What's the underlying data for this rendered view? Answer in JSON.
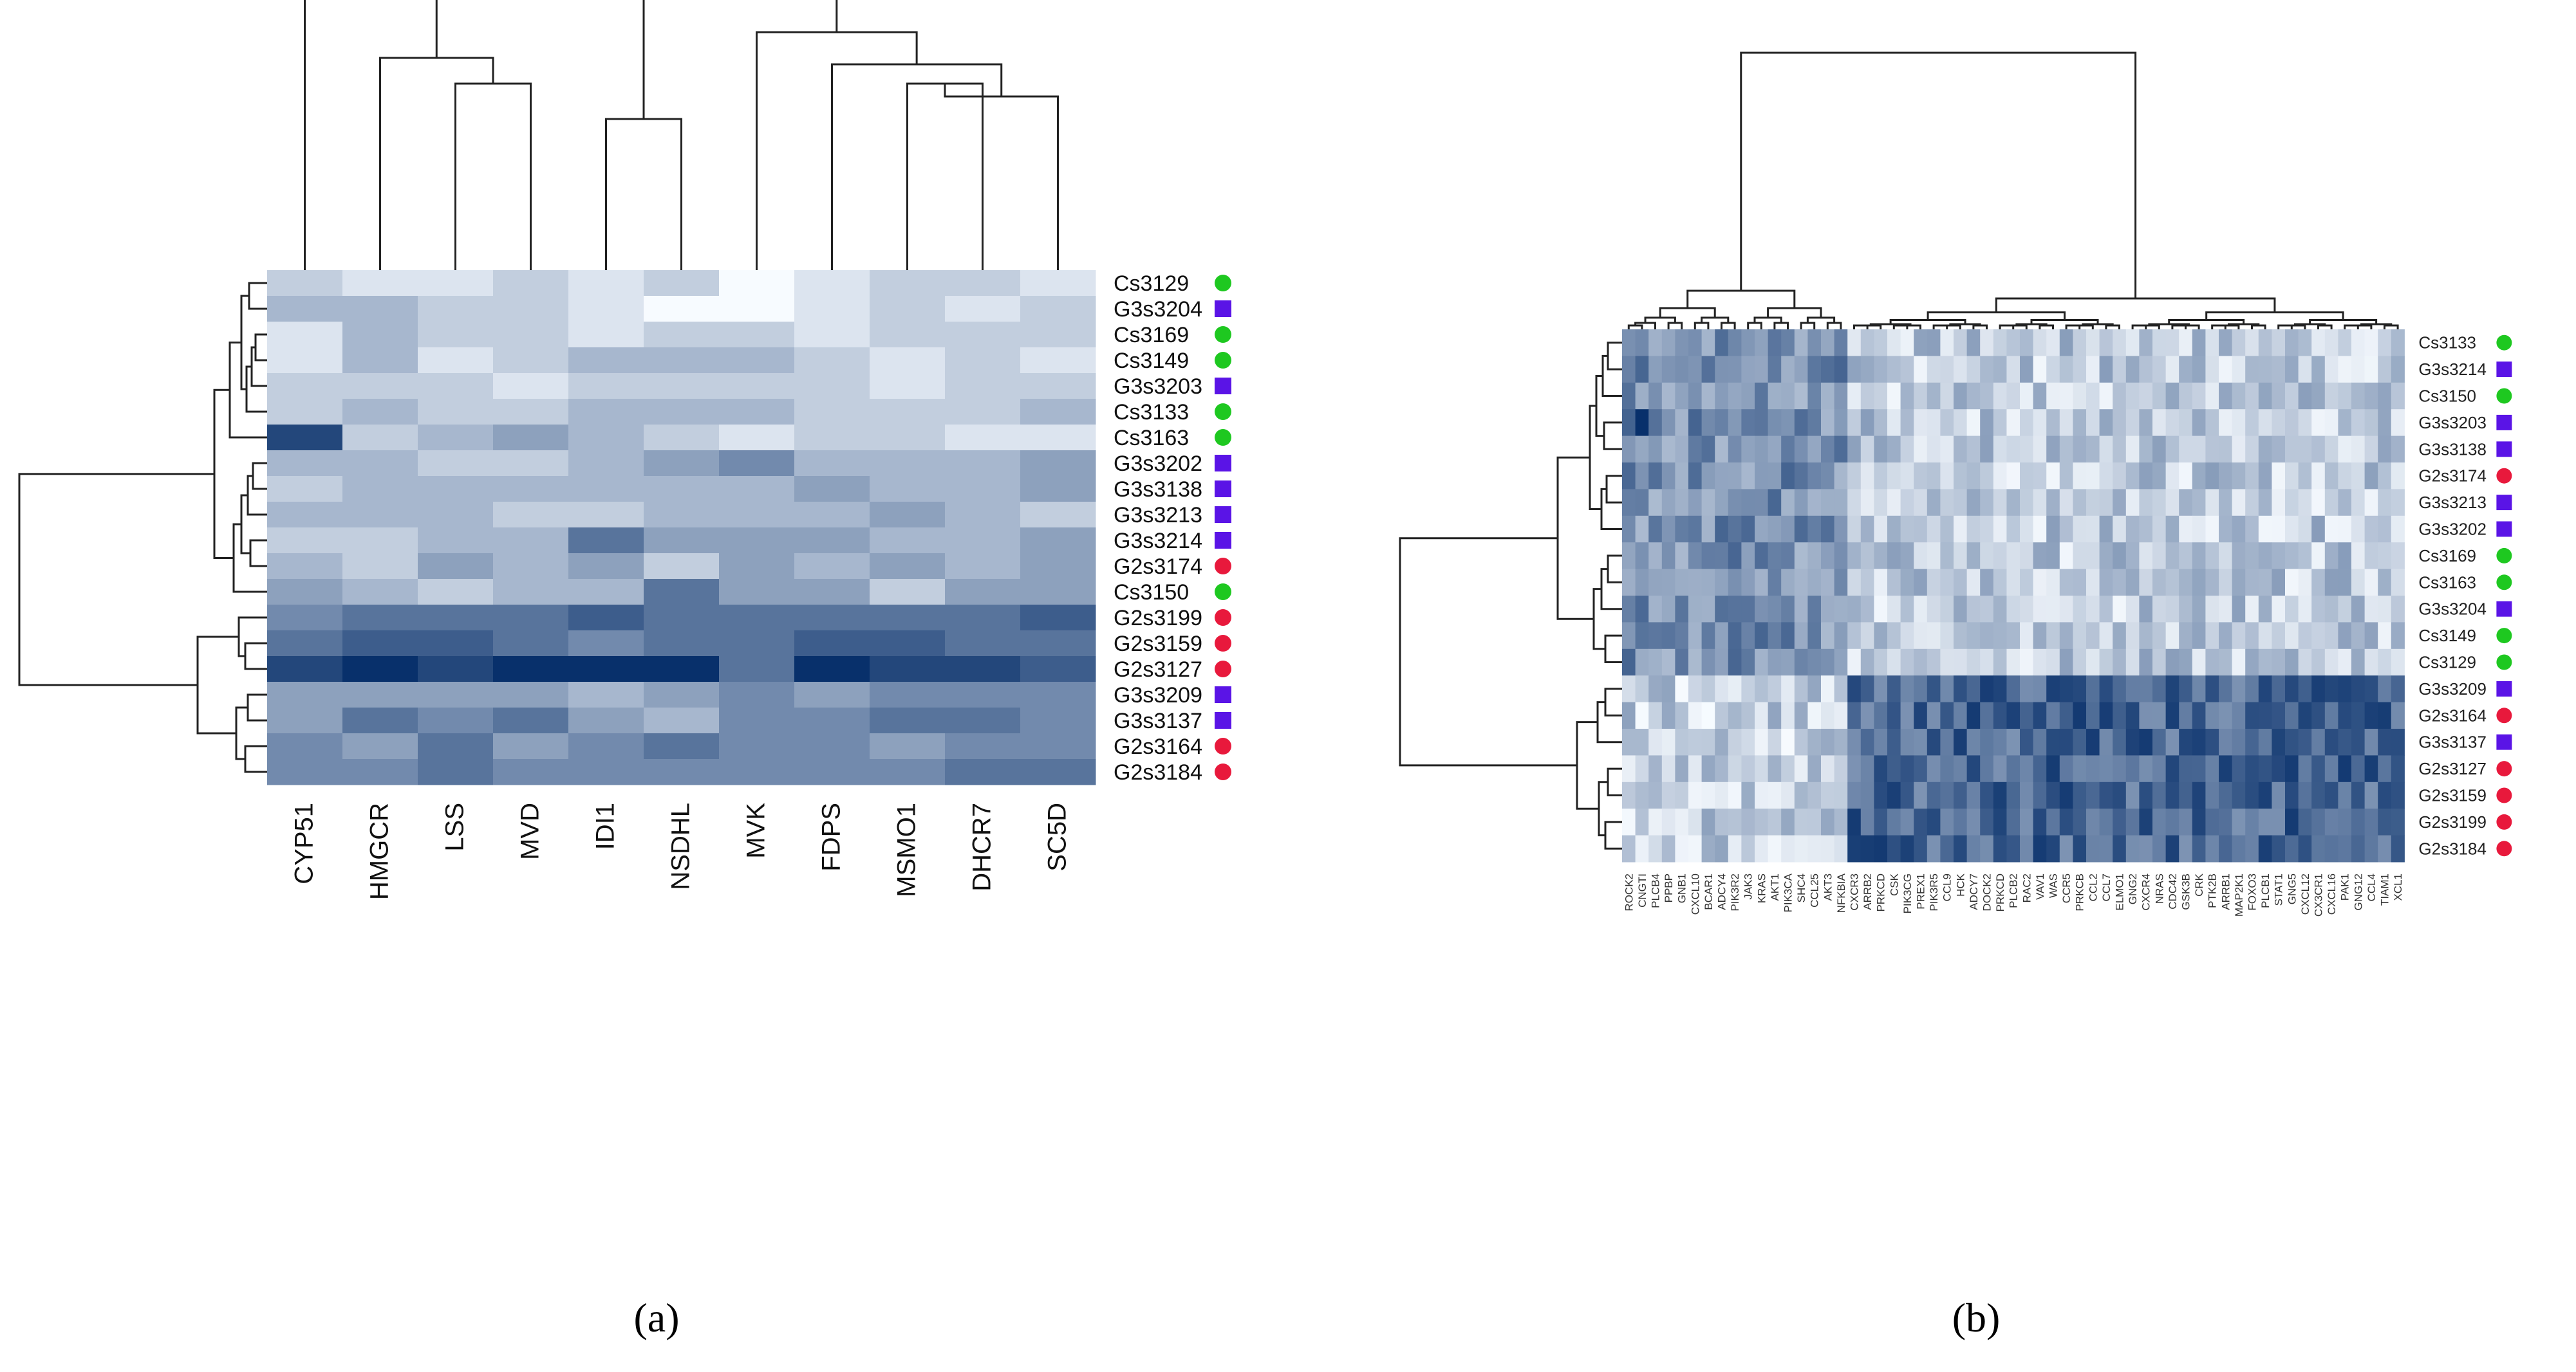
{
  "chart_data": [
    {
      "type": "heatmap",
      "panel_label": "(a)",
      "columns": [
        "CYP51",
        "HMGCR",
        "LSS",
        "MVD",
        "IDI1",
        "NSDHL",
        "MVK",
        "FDPS",
        "MSMO1",
        "DHCR7",
        "SC5D"
      ],
      "rows": [
        {
          "label": "Cs3129",
          "group": "Cs"
        },
        {
          "label": "G3s3204",
          "group": "G3"
        },
        {
          "label": "Cs3169",
          "group": "Cs"
        },
        {
          "label": "Cs3149",
          "group": "Cs"
        },
        {
          "label": "G3s3203",
          "group": "G3"
        },
        {
          "label": "Cs3133",
          "group": "Cs"
        },
        {
          "label": "Cs3163",
          "group": "Cs"
        },
        {
          "label": "G3s3202",
          "group": "G3"
        },
        {
          "label": "G3s3138",
          "group": "G3"
        },
        {
          "label": "G3s3213",
          "group": "G3"
        },
        {
          "label": "G3s3214",
          "group": "G3"
        },
        {
          "label": "G2s3174",
          "group": "G2"
        },
        {
          "label": "Cs3150",
          "group": "Cs"
        },
        {
          "label": "G2s3199",
          "group": "G2"
        },
        {
          "label": "G2s3159",
          "group": "G2"
        },
        {
          "label": "G2s3127",
          "group": "G2"
        },
        {
          "label": "G3s3209",
          "group": "G3"
        },
        {
          "label": "G3s3137",
          "group": "G3"
        },
        {
          "label": "G2s3164",
          "group": "G2"
        },
        {
          "label": "G2s3184",
          "group": "G2"
        }
      ],
      "values": [
        [
          2,
          1,
          1,
          2,
          1,
          2,
          0,
          1,
          2,
          2,
          1
        ],
        [
          3,
          3,
          2,
          2,
          1,
          0,
          0,
          1,
          2,
          1,
          2
        ],
        [
          1,
          3,
          2,
          2,
          1,
          2,
          2,
          1,
          2,
          2,
          2
        ],
        [
          1,
          3,
          1,
          2,
          3,
          3,
          3,
          2,
          1,
          2,
          1
        ],
        [
          2,
          2,
          2,
          1,
          2,
          2,
          2,
          2,
          1,
          2,
          2
        ],
        [
          2,
          3,
          2,
          2,
          3,
          3,
          3,
          2,
          2,
          2,
          3
        ],
        [
          8,
          2,
          3,
          4,
          3,
          2,
          1,
          2,
          2,
          1,
          1
        ],
        [
          3,
          3,
          2,
          2,
          3,
          4,
          5,
          3,
          3,
          3,
          4
        ],
        [
          2,
          3,
          3,
          3,
          3,
          3,
          3,
          4,
          3,
          3,
          4
        ],
        [
          3,
          3,
          3,
          2,
          2,
          3,
          3,
          3,
          4,
          3,
          2
        ],
        [
          2,
          2,
          3,
          3,
          6,
          4,
          4,
          4,
          3,
          3,
          4
        ],
        [
          3,
          2,
          4,
          3,
          4,
          2,
          4,
          3,
          4,
          3,
          4
        ],
        [
          4,
          3,
          2,
          3,
          3,
          6,
          4,
          4,
          2,
          4,
          4
        ],
        [
          5,
          6,
          6,
          6,
          7,
          6,
          6,
          6,
          6,
          6,
          7
        ],
        [
          6,
          7,
          7,
          6,
          5,
          6,
          6,
          7,
          7,
          6,
          6
        ],
        [
          8,
          9,
          8,
          9,
          9,
          9,
          6,
          9,
          8,
          8,
          7
        ],
        [
          4,
          4,
          4,
          4,
          3,
          4,
          5,
          4,
          5,
          5,
          5
        ],
        [
          4,
          6,
          5,
          6,
          4,
          3,
          5,
          5,
          6,
          6,
          5
        ],
        [
          5,
          4,
          6,
          4,
          5,
          6,
          5,
          5,
          4,
          5,
          5
        ],
        [
          5,
          5,
          6,
          5,
          5,
          5,
          5,
          5,
          5,
          6,
          6
        ]
      ],
      "row_dendrogram": "hierarchical clustering of samples",
      "col_dendrogram": "hierarchical clustering of genes",
      "colors": {
        "scale_low": "#f7fbff",
        "scale_high": "#08306b",
        "Cs": "#1ec820",
        "G3": "#5a14e6",
        "G2": "#e8193c"
      }
    },
    {
      "type": "heatmap",
      "panel_label": "(b)",
      "columns": [
        "ROCK2",
        "CNGTI",
        "PLCB4",
        "PPBP",
        "GNB1",
        "CXCL10",
        "BCAR1",
        "ADCY4",
        "PIK3R2",
        "JAK3",
        "KRAS",
        "AKT1",
        "PIK3CA",
        "SHC4",
        "CCL25",
        "AKT3",
        "NFKBIA",
        "CXCR3",
        "ARRB2",
        "PRKCD",
        "CSK",
        "PIK3CG",
        "PREX1",
        "PIK3R5",
        "CCL9",
        "HCK",
        "ADCY7",
        "DOCK2",
        "PRKCD",
        "PLCB2",
        "RAC2",
        "VAV1",
        "WAS",
        "CCR5",
        "PRKCB",
        "CCL2",
        "CCL7",
        "ELMO1",
        "GNG2",
        "CXCR4",
        "NRAS",
        "CDC42",
        "GSK3B",
        "CRK",
        "PTK2B",
        "ARRB1",
        "MAP2K1",
        "FOXO3",
        "PLCB1",
        "STAT1",
        "GNG5",
        "CXCL12",
        "CX3CR1",
        "CXCL16",
        "PAK1",
        "GNG12",
        "CCL4",
        "TIAM1",
        "XCL1"
      ],
      "rows": [
        {
          "label": "Cs3133",
          "group": "Cs"
        },
        {
          "label": "G3s3214",
          "group": "G3"
        },
        {
          "label": "Cs3150",
          "group": "Cs"
        },
        {
          "label": "G3s3203",
          "group": "G3"
        },
        {
          "label": "G3s3138",
          "group": "G3"
        },
        {
          "label": "G2s3174",
          "group": "G2"
        },
        {
          "label": "G3s3213",
          "group": "G3"
        },
        {
          "label": "G3s3202",
          "group": "G3"
        },
        {
          "label": "Cs3169",
          "group": "Cs"
        },
        {
          "label": "Cs3163",
          "group": "Cs"
        },
        {
          "label": "G3s3204",
          "group": "G3"
        },
        {
          "label": "Cs3149",
          "group": "Cs"
        },
        {
          "label": "Cs3129",
          "group": "Cs"
        },
        {
          "label": "G3s3209",
          "group": "G3"
        },
        {
          "label": "G2s3164",
          "group": "G2"
        },
        {
          "label": "G3s3137",
          "group": "G3"
        },
        {
          "label": "G2s3127",
          "group": "G2"
        },
        {
          "label": "G2s3159",
          "group": "G2"
        },
        {
          "label": "G2s3199",
          "group": "G2"
        },
        {
          "label": "G2s3184",
          "group": "G2"
        }
      ],
      "row_dendrogram": "hierarchical clustering of samples",
      "col_dendrogram": "hierarchical clustering of genes",
      "colors": {
        "scale_low": "#f7fbff",
        "scale_high": "#08306b",
        "Cs": "#1ec820",
        "G3": "#5a14e6",
        "G2": "#e8193c"
      }
    }
  ]
}
